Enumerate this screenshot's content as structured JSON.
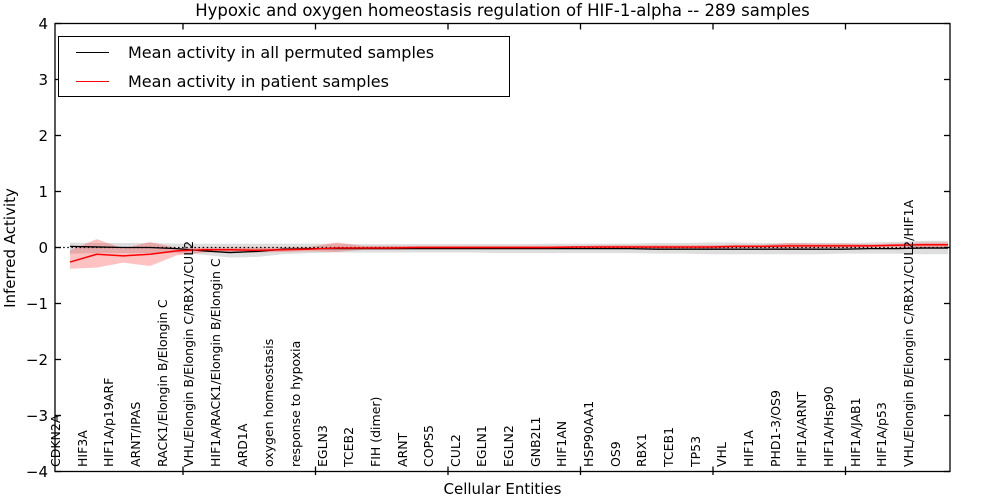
{
  "title": "Hypoxic and oxygen homeostasis regulation of HIF-1-alpha -- 289 samples",
  "axes": {
    "ylabel": "Inferred Activity",
    "xlabel": "Cellular Entities",
    "ytick_labels": [
      "4",
      "3",
      "2",
      "1",
      "0",
      "−1",
      "−2",
      "−3",
      "−4"
    ]
  },
  "legend": {
    "entries": [
      {
        "label": "Mean activity in all permuted samples",
        "color": "#000000"
      },
      {
        "label": "Mean activity in patient samples",
        "color": "#ff0000"
      }
    ]
  },
  "chart_data": {
    "type": "line",
    "title": "Hypoxic and oxygen homeostasis regulation of HIF-1-alpha -- 289 samples",
    "xlabel": "Cellular Entities",
    "ylabel": "Inferred Activity",
    "ylim": [
      -4,
      4
    ],
    "yticks": [
      -4,
      -3,
      -2,
      -1,
      0,
      1,
      2,
      3,
      4
    ],
    "grid": false,
    "legend_position": "upper left",
    "zero_line": {
      "value": 0,
      "style": "dotted",
      "color": "#000000"
    },
    "categories": [
      "CDKN2A",
      "HIF3A",
      "HIF1A/p19ARF",
      "ARNT/IPAS",
      "RACK1/Elongin B/Elongin C",
      "VHL/Elongin B/Elongin C/RBX1/CUL2",
      "HIF1A/RACK1/Elongin B/Elongin C",
      "ARD1A",
      "oxygen homeostasis",
      "response to hypoxia",
      "EGLN3",
      "TCEB2",
      "FIH (dimer)",
      "ARNT",
      "COPS5",
      "CUL2",
      "EGLN1",
      "EGLN2",
      "GNB2L1",
      "HIF1AN",
      "HSP90AA1",
      "OS9",
      "RBX1",
      "TCEB1",
      "TP53",
      "VHL",
      "HIF1A",
      "PHD1-3/OS9",
      "HIF1A/ARNT",
      "HIF1A/Hsp90",
      "HIF1A/JAB1",
      "HIF1A/p53",
      "VHL/Elongin B/Elongin C/RBX1/CUL2/HIF1A"
    ],
    "series": [
      {
        "name": "Mean activity in all permuted samples",
        "color": "#000000",
        "style": "solid",
        "width": 1.3,
        "values": [
          0.02,
          0.01,
          0.0,
          0.0,
          -0.02,
          -0.06,
          -0.09,
          -0.07,
          -0.03,
          -0.02,
          -0.02,
          -0.02,
          -0.02,
          -0.02,
          -0.02,
          -0.02,
          -0.02,
          -0.02,
          -0.02,
          -0.02,
          -0.02,
          -0.02,
          -0.03,
          -0.03,
          -0.03,
          -0.03,
          -0.03,
          -0.03,
          -0.03,
          -0.03,
          -0.02,
          -0.02,
          -0.01
        ]
      },
      {
        "name": "Mean activity in patient samples",
        "color": "#ff0000",
        "style": "solid",
        "width": 1.5,
        "values": [
          -0.26,
          -0.12,
          -0.15,
          -0.12,
          -0.06,
          -0.04,
          -0.04,
          -0.05,
          -0.04,
          -0.03,
          -0.01,
          -0.01,
          -0.01,
          0.0,
          0.0,
          0.0,
          0.0,
          0.0,
          0.0,
          0.01,
          0.01,
          0.01,
          0.01,
          0.01,
          0.01,
          0.02,
          0.02,
          0.03,
          0.03,
          0.03,
          0.03,
          0.04,
          0.05
        ]
      }
    ],
    "bands": [
      {
        "name": "permuted-samples-range",
        "color": "#000000",
        "opacity": 0.13,
        "upper": [
          0.09,
          0.08,
          0.08,
          0.08,
          0.07,
          0.07,
          0.07,
          0.07,
          0.07,
          0.07,
          0.07,
          0.06,
          0.06,
          0.06,
          0.06,
          0.06,
          0.06,
          0.06,
          0.07,
          0.07,
          0.07,
          0.07,
          0.08,
          0.08,
          0.09,
          0.09,
          0.08,
          0.08,
          0.08,
          0.08,
          0.09,
          0.1,
          0.12
        ],
        "lower": [
          -0.11,
          -0.1,
          -0.1,
          -0.1,
          -0.1,
          -0.13,
          -0.18,
          -0.17,
          -0.12,
          -0.1,
          -0.09,
          -0.09,
          -0.09,
          -0.09,
          -0.09,
          -0.09,
          -0.1,
          -0.1,
          -0.1,
          -0.1,
          -0.1,
          -0.1,
          -0.11,
          -0.11,
          -0.12,
          -0.12,
          -0.12,
          -0.12,
          -0.12,
          -0.11,
          -0.11,
          -0.11,
          -0.12
        ]
      },
      {
        "name": "patient-samples-range",
        "color": "#ff0000",
        "opacity": 0.24,
        "upper": [
          -0.05,
          0.15,
          -0.02,
          0.1,
          -0.01,
          0.0,
          0.0,
          0.0,
          0.0,
          0.01,
          0.09,
          0.03,
          0.03,
          0.03,
          0.03,
          0.03,
          0.03,
          0.03,
          0.03,
          0.03,
          0.04,
          0.04,
          0.04,
          0.04,
          0.04,
          0.05,
          0.05,
          0.08,
          0.07,
          0.07,
          0.06,
          0.07,
          0.09
        ],
        "lower": [
          -0.38,
          -0.36,
          -0.27,
          -0.33,
          -0.14,
          -0.09,
          -0.08,
          -0.09,
          -0.08,
          -0.07,
          -0.08,
          -0.04,
          -0.04,
          -0.03,
          -0.03,
          -0.03,
          -0.03,
          -0.03,
          -0.03,
          -0.02,
          -0.02,
          -0.02,
          -0.02,
          -0.02,
          -0.02,
          -0.01,
          -0.01,
          -0.02,
          -0.01,
          -0.01,
          0.0,
          0.0,
          -0.02
        ]
      }
    ]
  }
}
